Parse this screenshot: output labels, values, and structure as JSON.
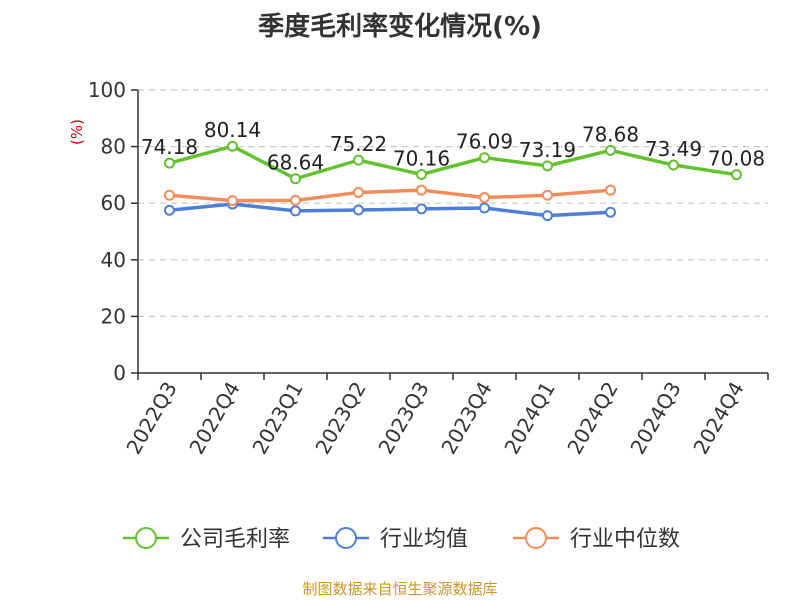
{
  "chart_data": {
    "type": "line",
    "title": "季度毛利率变化情况(%)",
    "ylabel": "(%)",
    "xlabel": "",
    "categories": [
      "2022Q3",
      "2022Q4",
      "2023Q1",
      "2023Q2",
      "2023Q3",
      "2023Q4",
      "2024Q1",
      "2024Q2",
      "2024Q3",
      "2024Q4"
    ],
    "ylim": [
      0,
      100
    ],
    "yticks": [
      0,
      20,
      40,
      60,
      80,
      100
    ],
    "grid": true,
    "legend": "bottom",
    "series": [
      {
        "name": "公司毛利率",
        "color": "#62c22e",
        "labels": true,
        "values": [
          74.18,
          80.14,
          68.64,
          75.22,
          70.16,
          76.09,
          73.19,
          78.68,
          73.49,
          70.08
        ]
      },
      {
        "name": "行业均值",
        "color": "#4e7ed8",
        "labels": false,
        "values": [
          57.5,
          59.7,
          57.3,
          57.6,
          58.0,
          58.3,
          55.6,
          56.8,
          null,
          null
        ]
      },
      {
        "name": "行业中位数",
        "color": "#f38c5a",
        "labels": false,
        "values": [
          62.8,
          60.9,
          61.0,
          63.8,
          64.6,
          62.0,
          62.8,
          64.6,
          null,
          null
        ]
      }
    ],
    "source": "制图数据来自恒生聚源数据库"
  }
}
